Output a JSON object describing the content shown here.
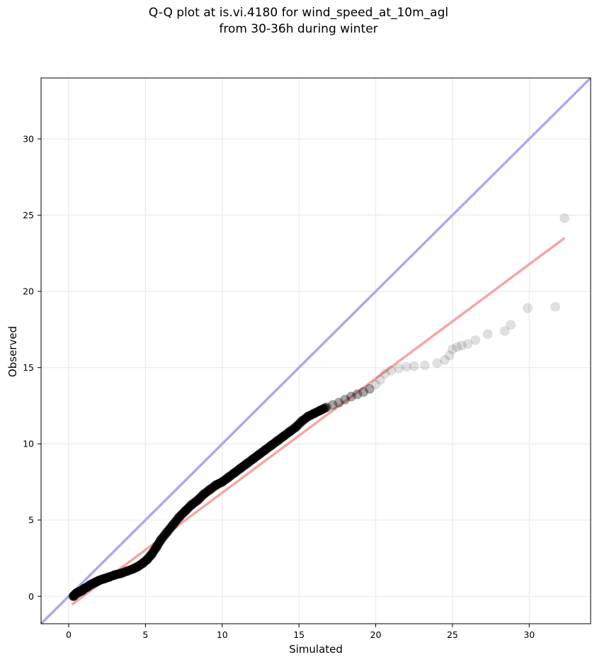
{
  "chart_data": {
    "type": "scatter",
    "title_line1": "Q-Q plot at is.vi.4180 for wind_speed_at_10m_agl",
    "title_line2": "from 30-36h during winter",
    "xlabel": "Simulated",
    "ylabel": "Observed",
    "xlim": [
      -1.8,
      34
    ],
    "ylim": [
      -1.8,
      34
    ],
    "xticks": [
      0,
      5,
      10,
      15,
      20,
      25,
      30
    ],
    "yticks": [
      0,
      5,
      10,
      15,
      20,
      25,
      30
    ],
    "grid": true,
    "reference_line": {
      "color": "#aaaaf0",
      "points": [
        [
          -1.8,
          -1.8
        ],
        [
          34,
          34
        ]
      ]
    },
    "fit_line": {
      "color": "#f4a6a6",
      "points": [
        [
          0.2,
          -0.55
        ],
        [
          32.3,
          23.5
        ]
      ]
    },
    "marker_color": "#000000",
    "points": [
      [
        0.3,
        0.0
      ],
      [
        0.4,
        0.1
      ],
      [
        0.5,
        0.2
      ],
      [
        0.6,
        0.25
      ],
      [
        0.7,
        0.3
      ],
      [
        0.8,
        0.35
      ],
      [
        0.9,
        0.4
      ],
      [
        1.0,
        0.5
      ],
      [
        1.2,
        0.6
      ],
      [
        1.4,
        0.75
      ],
      [
        1.6,
        0.85
      ],
      [
        1.8,
        0.95
      ],
      [
        2.0,
        1.05
      ],
      [
        2.3,
        1.15
      ],
      [
        2.6,
        1.25
      ],
      [
        3.0,
        1.4
      ],
      [
        3.4,
        1.5
      ],
      [
        3.8,
        1.65
      ],
      [
        4.2,
        1.8
      ],
      [
        4.5,
        1.95
      ],
      [
        4.8,
        2.15
      ],
      [
        5.1,
        2.4
      ],
      [
        5.4,
        2.75
      ],
      [
        5.7,
        3.2
      ],
      [
        6.0,
        3.7
      ],
      [
        6.4,
        4.2
      ],
      [
        6.8,
        4.7
      ],
      [
        7.2,
        5.2
      ],
      [
        7.6,
        5.6
      ],
      [
        8.0,
        6.0
      ],
      [
        8.4,
        6.3
      ],
      [
        8.8,
        6.7
      ],
      [
        9.2,
        7.0
      ],
      [
        9.6,
        7.3
      ],
      [
        10.0,
        7.5
      ],
      [
        10.4,
        7.8
      ],
      [
        10.8,
        8.1
      ],
      [
        11.2,
        8.4
      ],
      [
        11.6,
        8.7
      ],
      [
        12.0,
        9.0
      ],
      [
        12.4,
        9.3
      ],
      [
        12.8,
        9.6
      ],
      [
        13.2,
        9.9
      ],
      [
        13.6,
        10.2
      ],
      [
        14.0,
        10.5
      ],
      [
        14.4,
        10.8
      ],
      [
        14.8,
        11.1
      ],
      [
        15.2,
        11.5
      ],
      [
        15.6,
        11.8
      ],
      [
        16.0,
        12.0
      ],
      [
        16.4,
        12.2
      ],
      [
        16.8,
        12.4
      ],
      [
        17.2,
        12.55
      ],
      [
        17.6,
        12.7
      ],
      [
        18.0,
        12.9
      ],
      [
        18.4,
        13.1
      ],
      [
        18.8,
        13.25
      ],
      [
        19.2,
        13.4
      ],
      [
        19.6,
        13.6
      ],
      [
        20.0,
        13.9
      ],
      [
        20.3,
        14.2
      ],
      [
        20.6,
        14.6
      ],
      [
        21.0,
        14.8
      ],
      [
        21.5,
        14.95
      ],
      [
        22.0,
        15.05
      ],
      [
        22.5,
        15.1
      ],
      [
        23.2,
        15.15
      ],
      [
        24.0,
        15.3
      ],
      [
        24.5,
        15.5
      ],
      [
        24.8,
        15.8
      ],
      [
        25.0,
        16.2
      ],
      [
        25.3,
        16.35
      ],
      [
        25.6,
        16.45
      ],
      [
        26.0,
        16.55
      ],
      [
        26.5,
        16.8
      ],
      [
        27.3,
        17.2
      ],
      [
        28.4,
        17.4
      ],
      [
        28.8,
        17.8
      ],
      [
        29.9,
        18.9
      ],
      [
        31.7,
        19.0
      ],
      [
        32.3,
        24.8
      ]
    ]
  }
}
